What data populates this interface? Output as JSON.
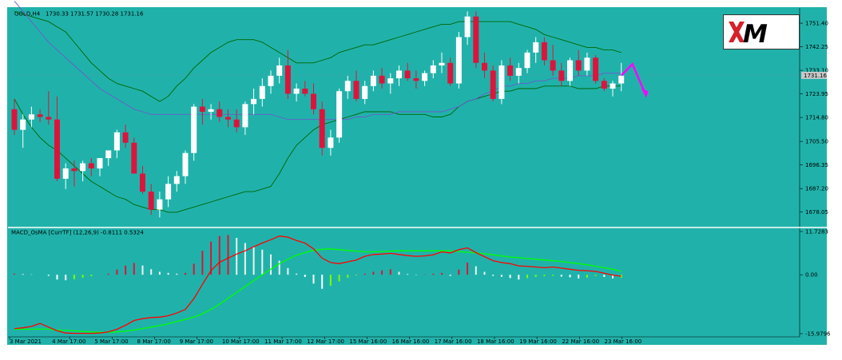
{
  "header": {
    "symbol": "GOLD,H4",
    "ohlc": "1730.33 1731.57 1730.28 1731.16",
    "indicator": "MACD_OsMA [CurrTF] (12,26,9) -0.8111 0.5324"
  },
  "logo": {
    "text": "XM",
    "accent": "#d6202a"
  },
  "colors": {
    "background": "#20b2aa",
    "bull": "#ffffff",
    "bear": "#dc143c",
    "band": "#006400",
    "ma": "#6a5acd",
    "forecast": "#ff00ff",
    "macd": "#ff0000",
    "signal": "#00ff00",
    "grid_separator": "#ffffff"
  },
  "chart_data": [
    {
      "type": "candlestick",
      "title": "GOLD,H4",
      "price_axis_ticks": [
        "1751.40",
        "1742.25",
        "1733.10",
        "1723.95",
        "1714.80",
        "1705.50",
        "1696.35",
        "1687.20",
        "1678.05"
      ],
      "current_price_label": "1731.16",
      "ylim": [
        1673,
        1757
      ],
      "time_labels": [
        "3 Mar 2021",
        "4 Mar 17:00",
        "5 Mar 17:00",
        "8 Mar 17:00",
        "9 Mar 17:00",
        "10 Mar 17:00",
        "11 Mar 17:00",
        "12 Mar 17:00",
        "15 Mar 16:00",
        "16 Mar 16:00",
        "17 Mar 16:00",
        "18 Mar 16:00",
        "19 Mar 16:00",
        "22 Mar 16:00",
        "23 Mar 16:00"
      ],
      "candles": [
        [
          1718,
          1722,
          1708,
          1710
        ],
        [
          1710,
          1716,
          1703,
          1714
        ],
        [
          1714,
          1719,
          1711,
          1716
        ],
        [
          1716,
          1718,
          1713,
          1715
        ],
        [
          1715,
          1725,
          1712,
          1714
        ],
        [
          1714,
          1723,
          1690,
          1691
        ],
        [
          1691,
          1697,
          1687,
          1695
        ],
        [
          1695,
          1698,
          1688,
          1694
        ],
        [
          1694,
          1698,
          1690,
          1697
        ],
        [
          1697,
          1699,
          1692,
          1695
        ],
        [
          1695,
          1699,
          1692,
          1699
        ],
        [
          1699,
          1702,
          1696,
          1702
        ],
        [
          1702,
          1710,
          1699,
          1709
        ],
        [
          1709,
          1712,
          1703,
          1705
        ],
        [
          1705,
          1707,
          1693,
          1693
        ],
        [
          1693,
          1696,
          1685,
          1686
        ],
        [
          1686,
          1689,
          1677,
          1679
        ],
        [
          1679,
          1686,
          1676,
          1683
        ],
        [
          1683,
          1692,
          1680,
          1689
        ],
        [
          1689,
          1694,
          1686,
          1692
        ],
        [
          1692,
          1702,
          1689,
          1701
        ],
        [
          1701,
          1720,
          1698,
          1719
        ],
        [
          1719,
          1722,
          1712,
          1717
        ],
        [
          1717,
          1720,
          1714,
          1718
        ],
        [
          1718,
          1721,
          1713,
          1715
        ],
        [
          1715,
          1718,
          1711,
          1714
        ],
        [
          1714,
          1718,
          1709,
          1711
        ],
        [
          1711,
          1721,
          1708,
          1720
        ],
        [
          1720,
          1726,
          1716,
          1722
        ],
        [
          1722,
          1730,
          1719,
          1727
        ],
        [
          1727,
          1733,
          1724,
          1731
        ],
        [
          1731,
          1738,
          1728,
          1735
        ],
        [
          1735,
          1741,
          1722,
          1724
        ],
        [
          1724,
          1728,
          1721,
          1726
        ],
        [
          1726,
          1729,
          1723,
          1724
        ],
        [
          1724,
          1728,
          1716,
          1718
        ],
        [
          1718,
          1721,
          1700,
          1703
        ],
        [
          1703,
          1710,
          1700,
          1707
        ],
        [
          1707,
          1726,
          1705,
          1725
        ],
        [
          1725,
          1731,
          1722,
          1729
        ],
        [
          1729,
          1733,
          1721,
          1722
        ],
        [
          1722,
          1729,
          1720,
          1727
        ],
        [
          1727,
          1733,
          1725,
          1731
        ],
        [
          1731,
          1734,
          1726,
          1728
        ],
        [
          1728,
          1732,
          1724,
          1730
        ],
        [
          1730,
          1735,
          1727,
          1733
        ],
        [
          1733,
          1736,
          1729,
          1730
        ],
        [
          1730,
          1733,
          1726,
          1729
        ],
        [
          1729,
          1733,
          1727,
          1732
        ],
        [
          1732,
          1737,
          1730,
          1735
        ],
        [
          1735,
          1740,
          1732,
          1736
        ],
        [
          1736,
          1738,
          1727,
          1728
        ],
        [
          1728,
          1748,
          1726,
          1746
        ],
        [
          1746,
          1756,
          1743,
          1754
        ],
        [
          1754,
          1756,
          1734,
          1736
        ],
        [
          1736,
          1740,
          1730,
          1733
        ],
        [
          1733,
          1735,
          1721,
          1722
        ],
        [
          1722,
          1737,
          1720,
          1735
        ],
        [
          1735,
          1738,
          1729,
          1731
        ],
        [
          1731,
          1736,
          1728,
          1734
        ],
        [
          1734,
          1741,
          1732,
          1740
        ],
        [
          1740,
          1746,
          1736,
          1744
        ],
        [
          1744,
          1746,
          1735,
          1737
        ],
        [
          1737,
          1743,
          1731,
          1733
        ],
        [
          1733,
          1736,
          1727,
          1729
        ],
        [
          1729,
          1738,
          1727,
          1737
        ],
        [
          1737,
          1741,
          1731,
          1733
        ],
        [
          1733,
          1740,
          1731,
          1738
        ],
        [
          1738,
          1739,
          1728,
          1729
        ],
        [
          1729,
          1730,
          1725,
          1726
        ],
        [
          1726,
          1729,
          1723,
          1728
        ],
        [
          1728,
          1736,
          1725,
          1731
        ]
      ],
      "upper_band": [
        1756,
        1755,
        1754,
        1753,
        1752,
        1750,
        1748,
        1744,
        1740,
        1736,
        1733,
        1730,
        1728,
        1727,
        1726,
        1725,
        1723,
        1721,
        1723,
        1727,
        1730,
        1734,
        1737,
        1740,
        1742,
        1744,
        1745,
        1745,
        1745,
        1744,
        1742,
        1740,
        1738,
        1736,
        1736,
        1736,
        1737,
        1738,
        1740,
        1741,
        1742,
        1743,
        1743,
        1744,
        1745,
        1746,
        1747,
        1748,
        1749,
        1750,
        1751,
        1751,
        1752,
        1752,
        1752,
        1752,
        1752,
        1752,
        1752,
        1751,
        1750,
        1749,
        1747,
        1746,
        1745,
        1744,
        1743,
        1742,
        1742,
        1741,
        1741,
        1740
      ],
      "lower_band": [
        1722,
        1716,
        1711,
        1707,
        1704,
        1702,
        1699,
        1696,
        1693,
        1690,
        1688,
        1686,
        1684,
        1683,
        1681,
        1680,
        1679,
        1679,
        1678,
        1678,
        1679,
        1680,
        1681,
        1682,
        1683,
        1684,
        1685,
        1686,
        1686,
        1687,
        1688,
        1693,
        1699,
        1704,
        1707,
        1710,
        1712,
        1713,
        1714,
        1715,
        1716,
        1717,
        1717,
        1717,
        1717,
        1716,
        1716,
        1716,
        1716,
        1715,
        1715,
        1716,
        1719,
        1721,
        1722,
        1723,
        1724,
        1725,
        1725,
        1726,
        1726,
        1726,
        1727,
        1727,
        1727,
        1727,
        1726,
        1726,
        1726,
        1727,
        1727,
        1727
      ],
      "ma": [
        1760,
        1756,
        1752,
        1748,
        1744,
        1741,
        1738,
        1735,
        1732,
        1729,
        1726,
        1724,
        1722,
        1720,
        1718,
        1717,
        1716,
        1716,
        1716,
        1716,
        1716,
        1716,
        1716,
        1716,
        1716,
        1716,
        1716,
        1716,
        1716,
        1716,
        1716,
        1715,
        1714,
        1714,
        1714,
        1714,
        1714,
        1714,
        1714,
        1714,
        1715,
        1715,
        1716,
        1716,
        1716,
        1717,
        1717,
        1717,
        1717,
        1717,
        1717,
        1718,
        1719,
        1721,
        1722,
        1724,
        1725,
        1727,
        1727,
        1728,
        1728,
        1729,
        1729,
        1730,
        1730,
        1730,
        1731,
        1731,
        1731,
        1732,
        1732,
        1732
      ]
    },
    {
      "type": "bar",
      "title": "MACD_OsMA [CurrTF] (12,26,9) -0.8111 0.5324",
      "axis_ticks": [
        "11.7283",
        "0.00",
        "-15.9796"
      ],
      "ylim": [
        -15.98,
        11.73
      ],
      "osma": [
        0.3,
        0.2,
        0.1,
        0.0,
        -0.3,
        -1.3,
        -1.5,
        -1.2,
        -0.8,
        -0.4,
        0.0,
        0.3,
        1.4,
        2.5,
        3.2,
        2.5,
        1.5,
        0.8,
        0.5,
        0.3,
        0.5,
        3.0,
        6.5,
        9.0,
        10.5,
        10.8,
        10.0,
        8.6,
        7.6,
        6.8,
        5.5,
        3.8,
        1.8,
        0.3,
        -0.6,
        -2.4,
        -3.8,
        -3.0,
        -1.8,
        -0.8,
        -0.2,
        0.3,
        0.8,
        1.2,
        1.5,
        0.8,
        0.2,
        -0.1,
        0.1,
        0.3,
        0.5,
        -0.3,
        1.4,
        3.3,
        2.3,
        0.8,
        -0.3,
        -0.6,
        -0.9,
        -1.3,
        -0.9,
        -0.6,
        -0.4,
        -0.3,
        -0.5,
        -0.7,
        -1.0,
        -0.8,
        -0.3,
        -0.6,
        -1.0,
        -0.8
      ],
      "macd": [
        -14.6,
        -14.4,
        -14.0,
        -13.2,
        -14.2,
        -15.2,
        -15.8,
        -15.9,
        -15.9,
        -15.9,
        -15.8,
        -15.5,
        -14.8,
        -13.7,
        -12.4,
        -11.9,
        -11.6,
        -11.5,
        -11.1,
        -10.4,
        -9.4,
        -6.5,
        -2.6,
        1.1,
        3.4,
        4.5,
        5.6,
        6.5,
        7.6,
        8.6,
        9.5,
        10.5,
        10.2,
        9.3,
        8.6,
        7.0,
        4.5,
        3.3,
        3.0,
        3.5,
        4.0,
        5.0,
        5.5,
        5.6,
        5.8,
        5.5,
        5.2,
        5.0,
        5.1,
        5.4,
        6.2,
        5.9,
        6.8,
        7.3,
        6.0,
        4.9,
        3.8,
        3.3,
        3.0,
        2.4,
        2.3,
        2.1,
        1.9,
        2.1,
        1.8,
        1.5,
        1.2,
        1.1,
        0.9,
        0.4,
        -0.1,
        -0.4
      ],
      "signal": [
        -14.8,
        -14.8,
        -14.8,
        -14.7,
        -14.8,
        -15.0,
        -15.1,
        -15.2,
        -15.4,
        -15.5,
        -15.6,
        -15.6,
        -15.5,
        -15.3,
        -15.0,
        -14.6,
        -14.2,
        -13.8,
        -13.3,
        -12.7,
        -12.1,
        -11.5,
        -10.6,
        -9.4,
        -8.0,
        -6.4,
        -4.8,
        -3.2,
        -1.6,
        0.0,
        1.5,
        3.0,
        4.2,
        5.3,
        6.0,
        6.6,
        6.9,
        7.0,
        6.8,
        6.6,
        6.4,
        6.2,
        6.2,
        6.3,
        6.4,
        6.5,
        6.5,
        6.5,
        6.5,
        6.5,
        6.5,
        6.5,
        6.3,
        6.1,
        5.9,
        5.7,
        5.4,
        5.1,
        4.8,
        4.6,
        4.4,
        4.2,
        4.0,
        3.8,
        3.6,
        3.3,
        3.0,
        2.7,
        2.3,
        1.9,
        1.5,
        0.9
      ]
    }
  ]
}
